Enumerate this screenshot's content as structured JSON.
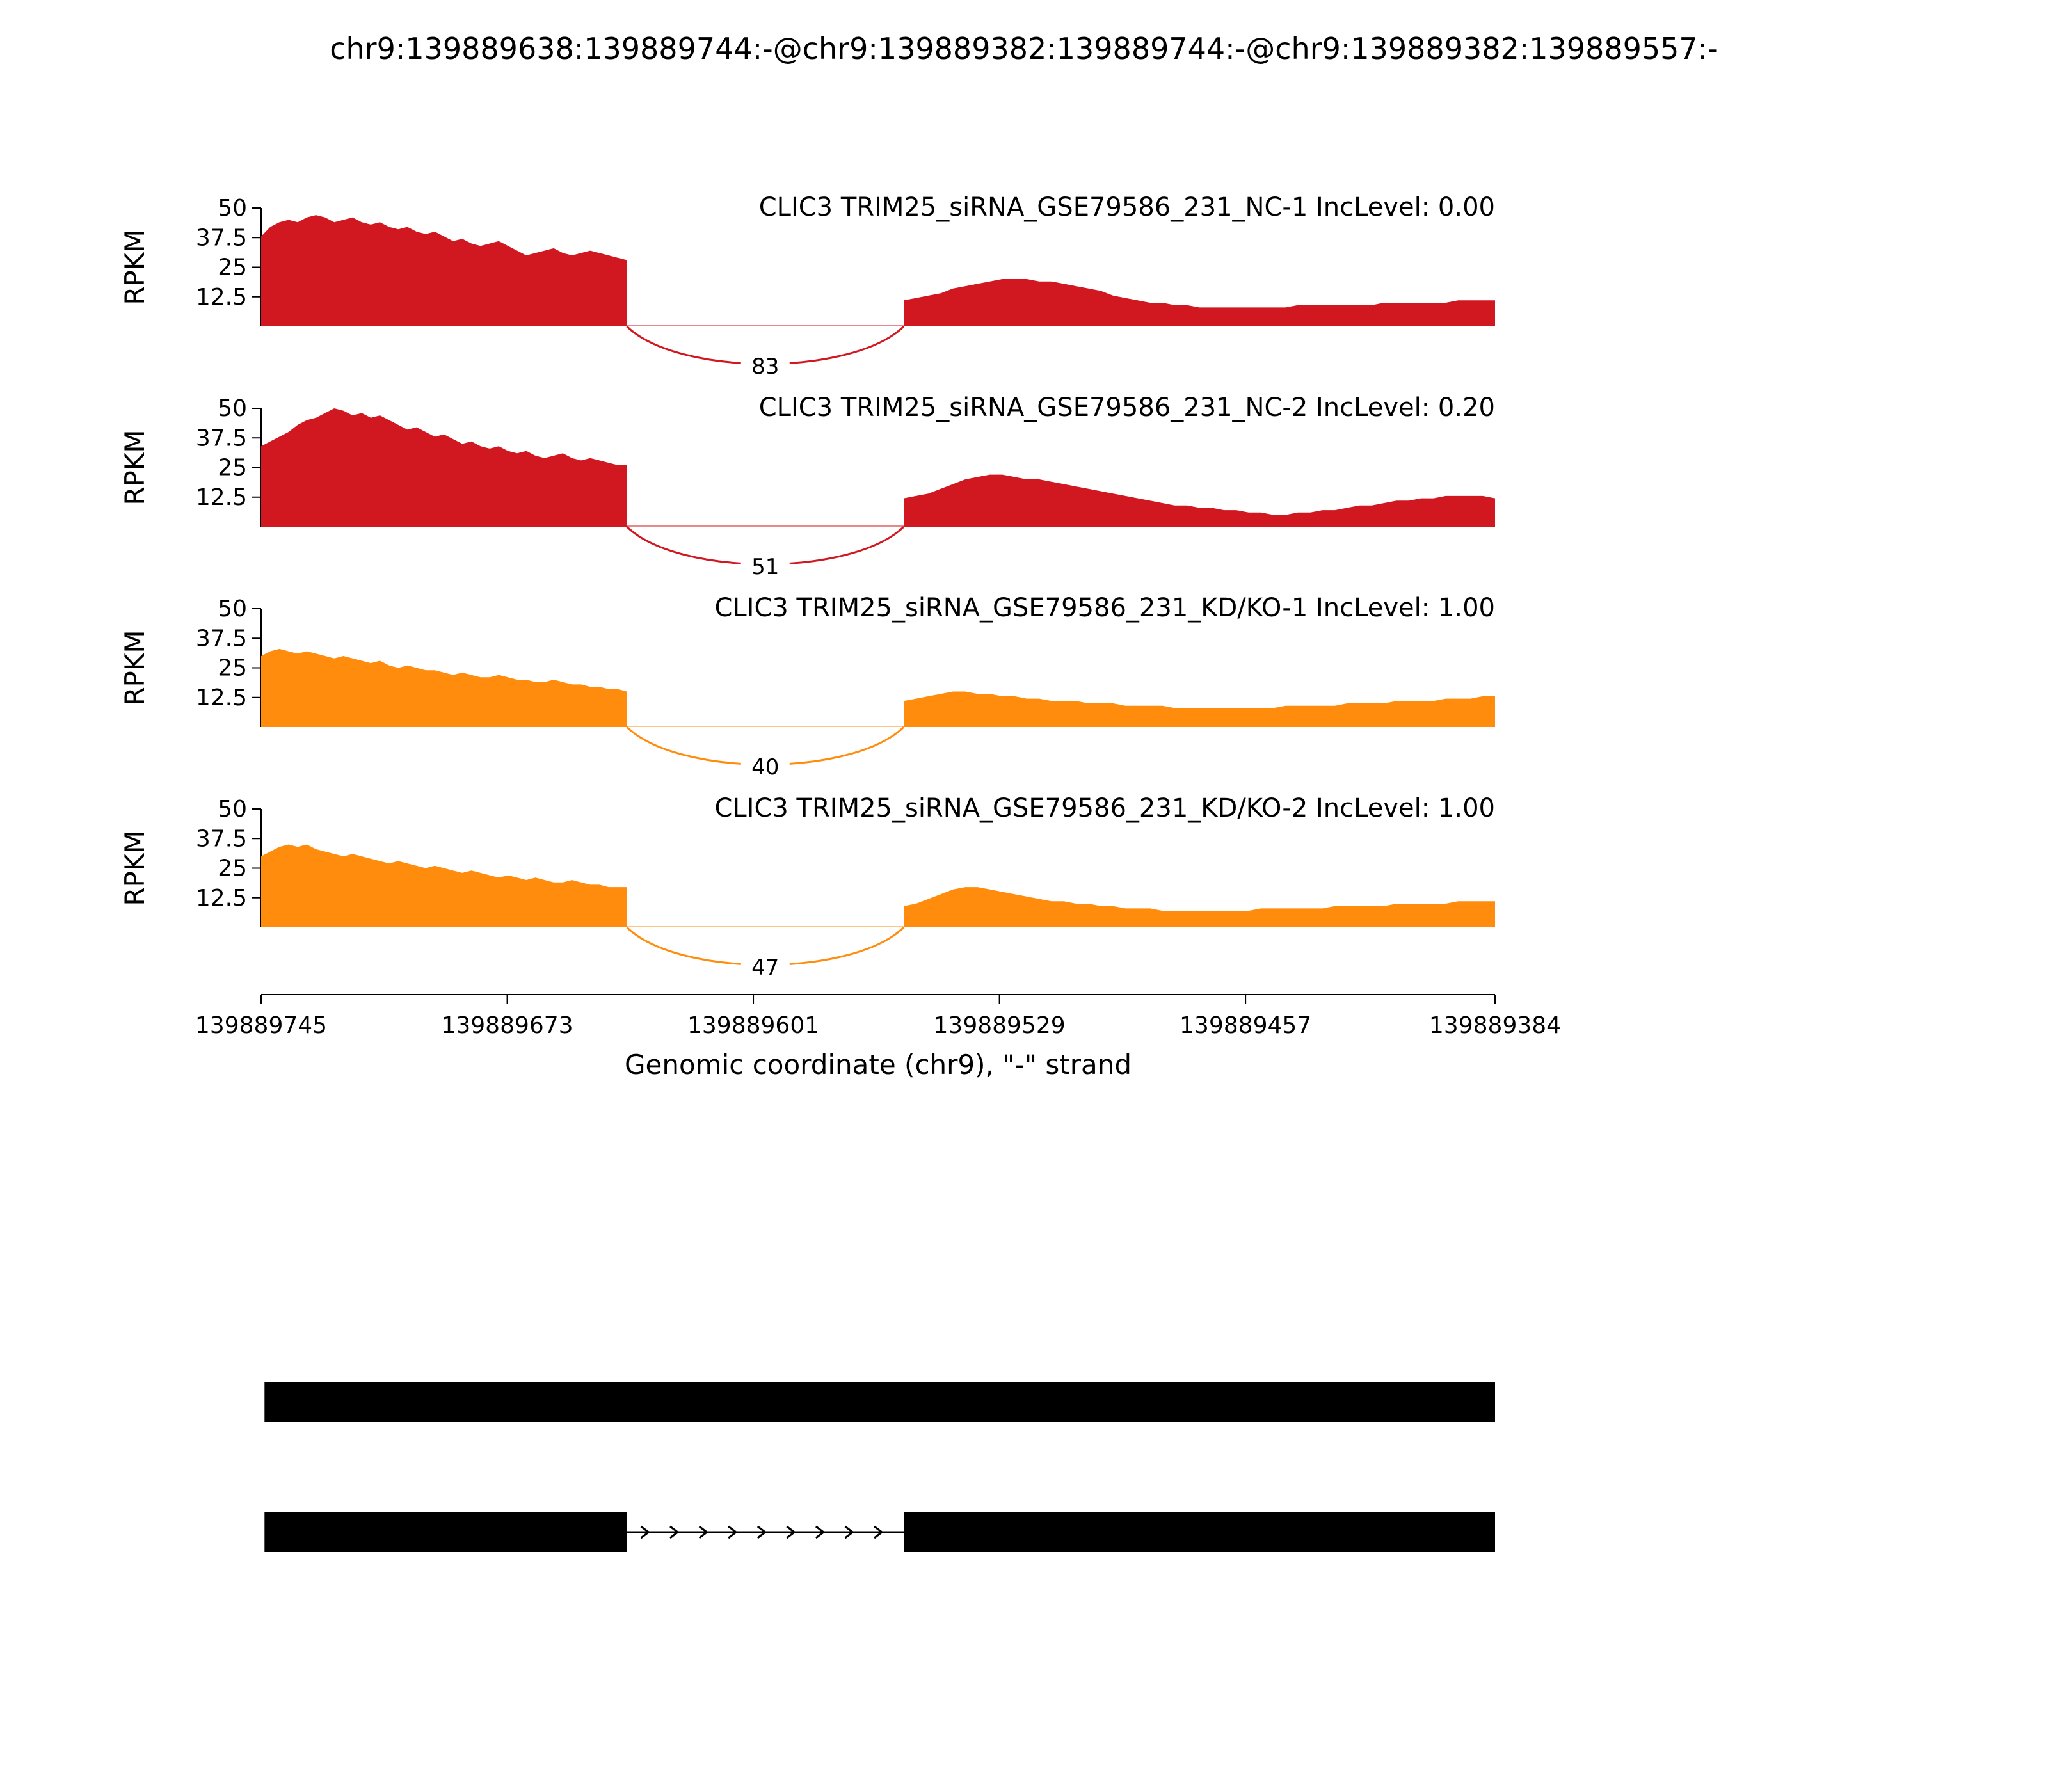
{
  "title": "chr9:139889638:139889744:-@chr9:139889382:139889744:-@chr9:139889382:139889557:-",
  "chart_data": {
    "type": "area",
    "title": "chr9:139889638:139889744:-@chr9:139889382:139889744:-@chr9:139889382:139889557:-",
    "xlabel": "Genomic coordinate (chr9), \"-\" strand",
    "ylabel": "RPKM",
    "ylim": [
      0,
      50
    ],
    "yticks": [
      12.5,
      25,
      37.5,
      50
    ],
    "xticks": [
      139889745,
      139889673,
      139889601,
      139889529,
      139889457,
      139889384
    ],
    "x_start": 139889745,
    "x_end": 139889384,
    "strand": "-",
    "grid": false,
    "regions": {
      "left_exon": [
        139889745,
        139889638
      ],
      "intron": [
        139889638,
        139889557
      ],
      "right_exon": [
        139889557,
        139889384
      ]
    },
    "tracks": [
      {
        "label": "CLIC3 TRIM25_siRNA_GSE79586_231_NC-1 IncLevel: 0.00",
        "color": "#d1171f",
        "junction_reads": 83,
        "coverage_left": [
          38,
          42,
          44,
          45,
          44,
          46,
          47,
          46,
          44,
          45,
          46,
          44,
          43,
          44,
          42,
          41,
          42,
          40,
          39,
          40,
          38,
          36,
          37,
          35,
          34,
          35,
          36,
          34,
          32,
          30,
          31,
          32,
          33,
          31,
          30,
          31,
          32,
          31,
          30,
          29,
          28
        ],
        "coverage_right": [
          11,
          12,
          13,
          14,
          16,
          17,
          18,
          19,
          20,
          20,
          20,
          19,
          19,
          18,
          17,
          16,
          15,
          13,
          12,
          11,
          10,
          10,
          9,
          9,
          8,
          8,
          8,
          8,
          8,
          8,
          8,
          8,
          9,
          9,
          9,
          9,
          9,
          9,
          9,
          10,
          10,
          10,
          10,
          10,
          10,
          11,
          11,
          11,
          11
        ]
      },
      {
        "label": "CLIC3 TRIM25_siRNA_GSE79586_231_NC-2 IncLevel: 0.20",
        "color": "#d1171f",
        "junction_reads": 51,
        "coverage_left": [
          34,
          36,
          38,
          40,
          43,
          45,
          46,
          48,
          50,
          49,
          47,
          48,
          46,
          47,
          45,
          43,
          41,
          42,
          40,
          38,
          39,
          37,
          35,
          36,
          34,
          33,
          34,
          32,
          31,
          32,
          30,
          29,
          30,
          31,
          29,
          28,
          29,
          28,
          27,
          26,
          26
        ],
        "coverage_right": [
          12,
          13,
          14,
          16,
          18,
          20,
          21,
          22,
          22,
          21,
          20,
          20,
          19,
          18,
          17,
          16,
          15,
          14,
          13,
          12,
          11,
          10,
          9,
          9,
          8,
          8,
          7,
          7,
          6,
          6,
          5,
          5,
          6,
          6,
          7,
          7,
          8,
          9,
          9,
          10,
          11,
          11,
          12,
          12,
          13,
          13,
          13,
          13,
          12
        ]
      },
      {
        "label": "CLIC3 TRIM25_siRNA_GSE79586_231_KD/KO-1 IncLevel: 1.00",
        "color": "#ff8c0d",
        "junction_reads": 40,
        "coverage_left": [
          30,
          32,
          33,
          32,
          31,
          32,
          31,
          30,
          29,
          30,
          29,
          28,
          27,
          28,
          26,
          25,
          26,
          25,
          24,
          24,
          23,
          22,
          23,
          22,
          21,
          21,
          22,
          21,
          20,
          20,
          19,
          19,
          20,
          19,
          18,
          18,
          17,
          17,
          16,
          16,
          15
        ],
        "coverage_right": [
          11,
          12,
          13,
          14,
          15,
          15,
          14,
          14,
          13,
          13,
          12,
          12,
          11,
          11,
          11,
          10,
          10,
          10,
          9,
          9,
          9,
          9,
          8,
          8,
          8,
          8,
          8,
          8,
          8,
          8,
          8,
          9,
          9,
          9,
          9,
          9,
          10,
          10,
          10,
          10,
          11,
          11,
          11,
          11,
          12,
          12,
          12,
          13,
          13
        ]
      },
      {
        "label": "CLIC3 TRIM25_siRNA_GSE79586_231_KD/KO-2 IncLevel: 1.00",
        "color": "#ff8c0d",
        "junction_reads": 47,
        "coverage_left": [
          30,
          32,
          34,
          35,
          34,
          35,
          33,
          32,
          31,
          30,
          31,
          30,
          29,
          28,
          27,
          28,
          27,
          26,
          25,
          26,
          25,
          24,
          23,
          24,
          23,
          22,
          21,
          22,
          21,
          20,
          21,
          20,
          19,
          19,
          20,
          19,
          18,
          18,
          17,
          17,
          17
        ],
        "coverage_right": [
          9,
          10,
          12,
          14,
          16,
          17,
          17,
          16,
          15,
          14,
          13,
          12,
          11,
          11,
          10,
          10,
          9,
          9,
          8,
          8,
          8,
          7,
          7,
          7,
          7,
          7,
          7,
          7,
          7,
          8,
          8,
          8,
          8,
          8,
          8,
          9,
          9,
          9,
          9,
          9,
          10,
          10,
          10,
          10,
          10,
          11,
          11,
          11,
          11
        ]
      }
    ],
    "isoforms": [
      {
        "exons": [
          [
            139889744,
            139889384
          ]
        ]
      },
      {
        "exons": [
          [
            139889744,
            139889638
          ],
          [
            139889557,
            139889384
          ]
        ],
        "intron_arrows": true
      }
    ]
  }
}
